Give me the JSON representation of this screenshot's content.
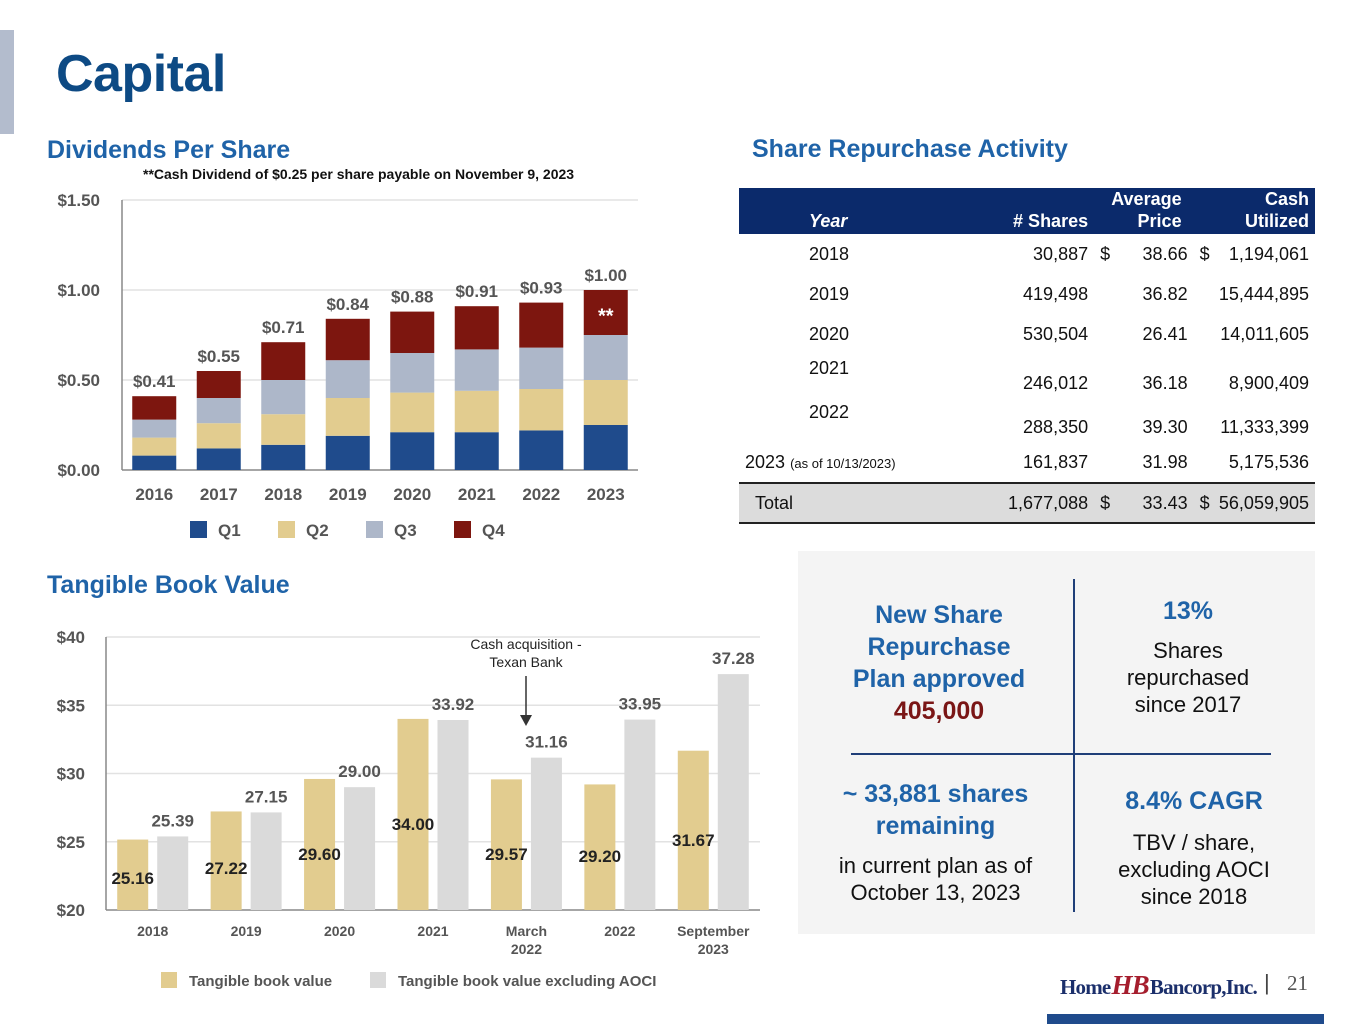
{
  "page": {
    "title": "Capital",
    "page_number": "21",
    "logo": {
      "left": "Home",
      "mark": "HB",
      "right": "Bancorp,Inc."
    }
  },
  "dividends": {
    "section_title": "Dividends Per Share",
    "footnote": "**Cash Dividend of $0.25 per share payable on November 9, 2023",
    "star_marker": "**"
  },
  "tbv": {
    "section_title": "Tangible Book Value",
    "annotation": [
      "Cash acquisition -",
      "Texan Bank"
    ]
  },
  "repurchase": {
    "section_title": "Share Repurchase Activity",
    "headers": {
      "year": "Year",
      "shares": "# Shares",
      "price_line1": "Average",
      "price_line2": "Price",
      "cash": "Cash Utilized"
    },
    "rows": [
      {
        "year": "2018",
        "note": "",
        "shares": "30,887",
        "dollar1": "$",
        "price": "38.66",
        "dollar2": "$",
        "cash": "1,194,061"
      },
      {
        "year": "2019",
        "note": "",
        "shares": "419,498",
        "dollar1": "",
        "price": "36.82",
        "dollar2": "",
        "cash": "15,444,895"
      },
      {
        "year": "2020",
        "note": "",
        "shares": "530,504",
        "dollar1": "",
        "price": "26.41",
        "dollar2": "",
        "cash": "14,011,605"
      },
      {
        "year": "2021",
        "note": "",
        "shares": "246,012",
        "dollar1": "",
        "price": "36.18",
        "dollar2": "",
        "cash": "8,900,409"
      },
      {
        "year": "2022",
        "note": "",
        "shares": "288,350",
        "dollar1": "",
        "price": "39.30",
        "dollar2": "",
        "cash": "11,333,399"
      },
      {
        "year": "2023",
        "note": "(as of 10/13/2023)",
        "shares": "161,837",
        "dollar1": "",
        "price": "31.98",
        "dollar2": "",
        "cash": "5,175,536"
      }
    ],
    "total": {
      "label": "Total",
      "shares": "1,677,088",
      "dollar1": "$",
      "price": "33.43",
      "dollar2": "$",
      "cash": "56,059,905"
    }
  },
  "stats": {
    "plan": {
      "line1": "New Share",
      "line2": "Repurchase",
      "line3": "Plan approved",
      "value": "405,000"
    },
    "repurchased": {
      "value": "13%",
      "line1": "Shares",
      "line2": "repurchased",
      "line3": "since 2017"
    },
    "remaining": {
      "line1": "~ 33,881 shares",
      "line2": "remaining",
      "line3": "in current plan as of",
      "line4": "October 13, 2023"
    },
    "cagr": {
      "value": "8.4% CAGR",
      "line1": "TBV / share,",
      "line2": "excluding AOCI",
      "line3": "since 2018"
    }
  },
  "colors": {
    "title": "#0d4a84",
    "section": "#1f63a8",
    "q1": "#1f4b8c",
    "q2": "#e2cc8f",
    "q3": "#adb7c9",
    "q4": "#7d160f",
    "tbv": "#e2cc8f",
    "tbv_ex_aoci": "#dadada",
    "table_header": "#0b2a6b",
    "accent_red": "#7a1616"
  },
  "chart_data": [
    {
      "type": "bar",
      "stacked": true,
      "title": "Dividends Per Share",
      "categories": [
        "2016",
        "2017",
        "2018",
        "2019",
        "2020",
        "2021",
        "2022",
        "2023"
      ],
      "series": [
        {
          "name": "Q1",
          "values": [
            0.08,
            0.12,
            0.14,
            0.19,
            0.21,
            0.21,
            0.22,
            0.25
          ]
        },
        {
          "name": "Q2",
          "values": [
            0.1,
            0.14,
            0.17,
            0.21,
            0.22,
            0.23,
            0.23,
            0.25
          ]
        },
        {
          "name": "Q3",
          "values": [
            0.1,
            0.14,
            0.19,
            0.21,
            0.22,
            0.23,
            0.23,
            0.25
          ]
        },
        {
          "name": "Q4",
          "values": [
            0.13,
            0.15,
            0.21,
            0.23,
            0.23,
            0.24,
            0.25,
            0.25
          ]
        }
      ],
      "totals": [
        "$0.41",
        "$0.55",
        "$0.71",
        "$0.84",
        "$0.88",
        "$0.91",
        "$0.93",
        "$1.00"
      ],
      "yticks": [
        "$0.00",
        "$0.50",
        "$1.00",
        "$1.50"
      ],
      "ylim": [
        0,
        1.5
      ],
      "legend": "bottom",
      "grid": true,
      "xlabel": "",
      "ylabel": ""
    },
    {
      "type": "bar",
      "title": "Tangible Book Value",
      "categories": [
        "2018",
        "2019",
        "2020",
        "2021",
        "March 2022",
        "2022",
        "September 2023"
      ],
      "series": [
        {
          "name": "Tangible book value",
          "values": [
            25.16,
            27.22,
            29.6,
            34.0,
            29.57,
            29.2,
            31.67
          ]
        },
        {
          "name": "Tangible book value excluding AOCI",
          "values": [
            25.39,
            27.15,
            29.0,
            33.92,
            31.16,
            33.95,
            37.28
          ]
        }
      ],
      "labels_tbv": [
        "25.16",
        "27.22",
        "29.60",
        "34.00",
        "29.57",
        "29.20",
        "31.67"
      ],
      "labels_ex": [
        "25.39",
        "27.15",
        "29.00",
        "33.92",
        "31.16",
        "33.95",
        "37.28"
      ],
      "yticks": [
        "$20",
        "$25",
        "$30",
        "$35",
        "$40"
      ],
      "ylim": [
        20,
        40
      ],
      "legend": "bottom",
      "grid": true,
      "annotation": {
        "text": "Cash acquisition - Texan Bank",
        "category": "March 2022"
      },
      "xlabel": "",
      "ylabel": ""
    }
  ]
}
